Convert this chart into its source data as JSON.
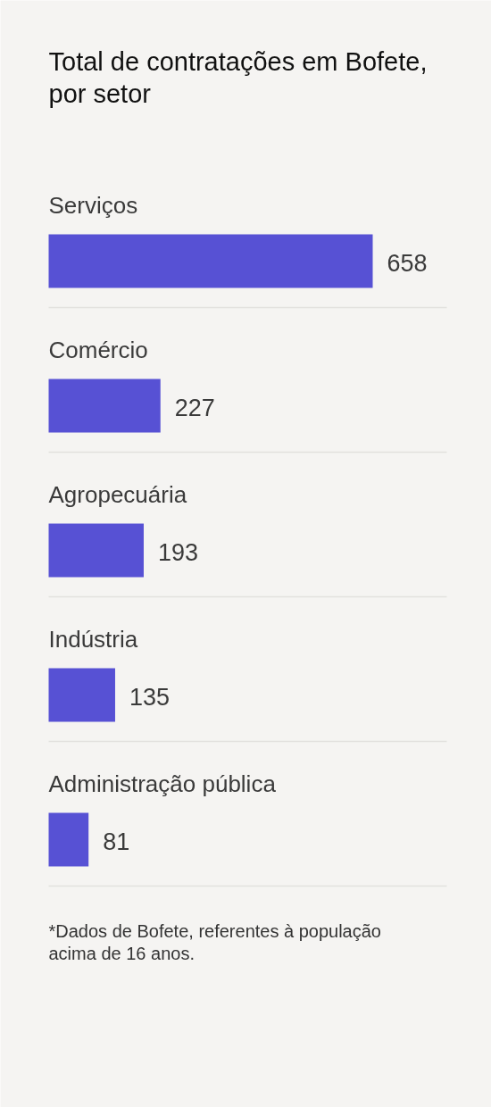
{
  "chart_data": {
    "type": "bar",
    "orientation": "horizontal",
    "title": "Total de contratações em Bofete, por setor",
    "categories": [
      "Serviços",
      "Comércio",
      "Agropecuária",
      "Indústria",
      "Administração pública"
    ],
    "values": [
      658,
      227,
      193,
      135,
      81
    ],
    "color": "#5751d4",
    "data_labels": true,
    "grid": "y",
    "annotations": [
      "*Dados de Bofete, referentes à população acima de 16 anos."
    ]
  }
}
